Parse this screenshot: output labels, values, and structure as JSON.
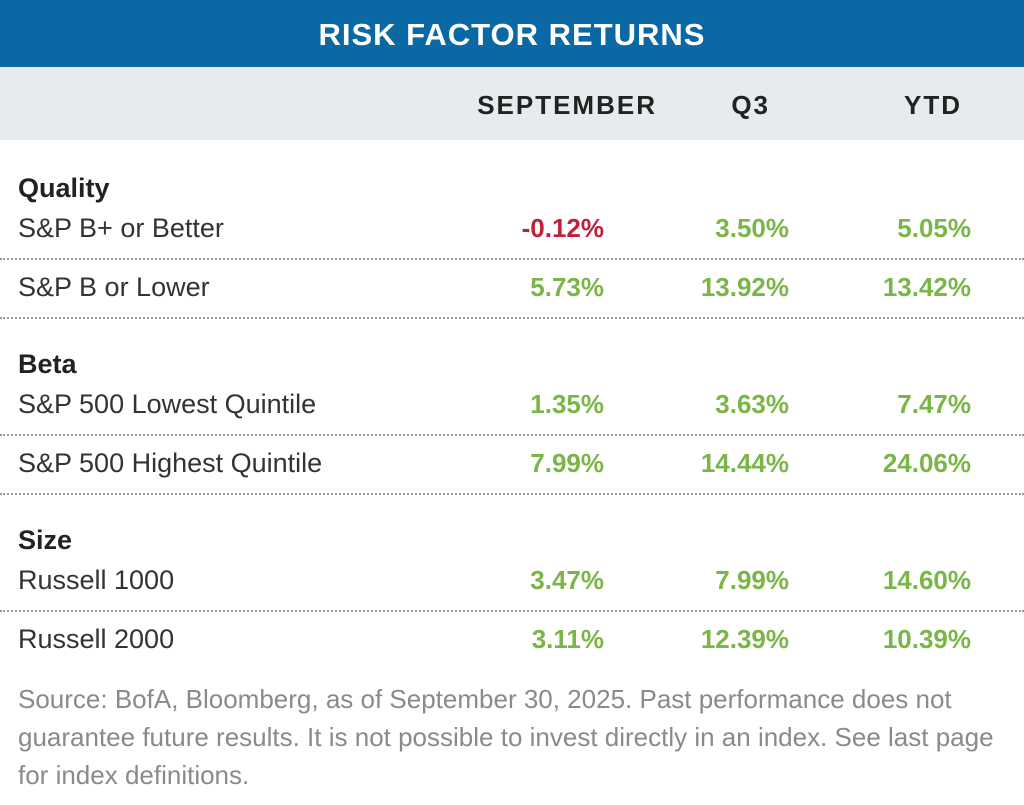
{
  "header": {
    "title": "RISK FACTOR RETURNS"
  },
  "table": {
    "columns": [
      "SEPTEMBER",
      "Q3",
      "YTD"
    ],
    "groups": [
      {
        "label": "Quality",
        "rows": [
          {
            "name": "S&P B+ or Better",
            "cells": [
              "-0.12%",
              "3.50%",
              "5.05%"
            ]
          },
          {
            "name": "S&P B or Lower",
            "cells": [
              "5.73%",
              "13.92%",
              "13.42%"
            ]
          }
        ]
      },
      {
        "label": "Beta",
        "rows": [
          {
            "name": "S&P 500 Lowest Quintile",
            "cells": [
              "1.35%",
              "3.63%",
              "7.47%"
            ]
          },
          {
            "name": "S&P 500 Highest Quintile",
            "cells": [
              "7.99%",
              "14.44%",
              "24.06%"
            ]
          }
        ]
      },
      {
        "label": "Size",
        "rows": [
          {
            "name": "Russell 1000",
            "cells": [
              "3.47%",
              "7.99%",
              "14.60%"
            ]
          },
          {
            "name": "Russell 2000",
            "cells": [
              "3.11%",
              "12.39%",
              "10.39%"
            ]
          }
        ]
      }
    ]
  },
  "footer": {
    "note": "Source: BofA, Bloomberg, as of September 30, 2025. Past performance does not guarantee future results. It is not possible to invest directly in an index. See last page for index definitions."
  }
}
